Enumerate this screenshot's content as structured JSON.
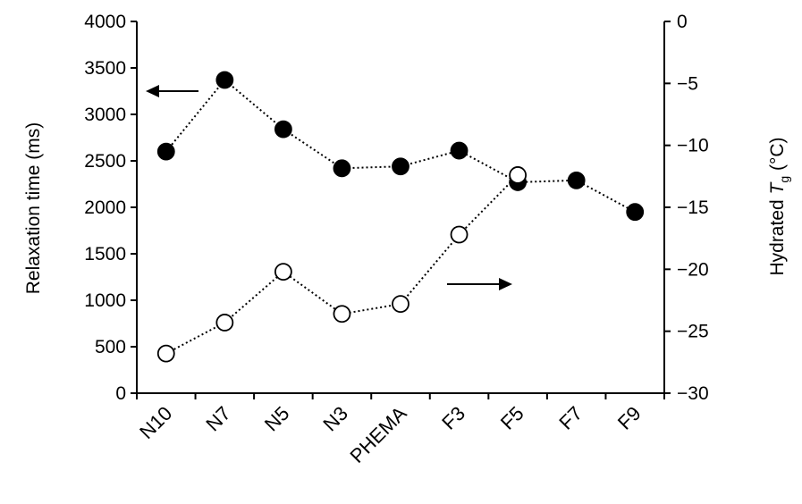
{
  "chart_data": {
    "type": "line",
    "categories": [
      "N10",
      "N7",
      "N5",
      "N3",
      "PHEMA",
      "F3",
      "F5",
      "F7",
      "F9"
    ],
    "left_axis": {
      "label": "Relaxation time (ms)",
      "ylim": [
        0,
        4000
      ],
      "ticks": [
        "0",
        "500",
        "1000",
        "1500",
        "2000",
        "2500",
        "3000",
        "3500",
        "4000"
      ]
    },
    "right_axis": {
      "label_prefix": "Hydrated ",
      "label_symbol": "T",
      "label_subscript": "g",
      "label_suffix": " (°C)",
      "ylim": [
        -30,
        0
      ],
      "ticks": [
        "0",
        "-5",
        "-10",
        "-15",
        "-20",
        "-25",
        "-30"
      ]
    },
    "series": [
      {
        "axis": "left",
        "marker": "filled-circle",
        "line": "dotted",
        "values": [
          2600,
          3370,
          2840,
          2420,
          2440,
          2610,
          2270,
          2290,
          1950
        ]
      },
      {
        "axis": "right",
        "marker": "open-circle",
        "line": "dotted",
        "values": [
          -26.8,
          -24.3,
          -20.2,
          -23.6,
          -22.8,
          -17.2,
          -12.4,
          null,
          null
        ]
      }
    ],
    "annotations": [
      {
        "type": "arrow",
        "direction": "left",
        "refers_to": "left axis series"
      },
      {
        "type": "arrow",
        "direction": "right",
        "refers_to": "right axis series"
      }
    ],
    "grid": false
  }
}
